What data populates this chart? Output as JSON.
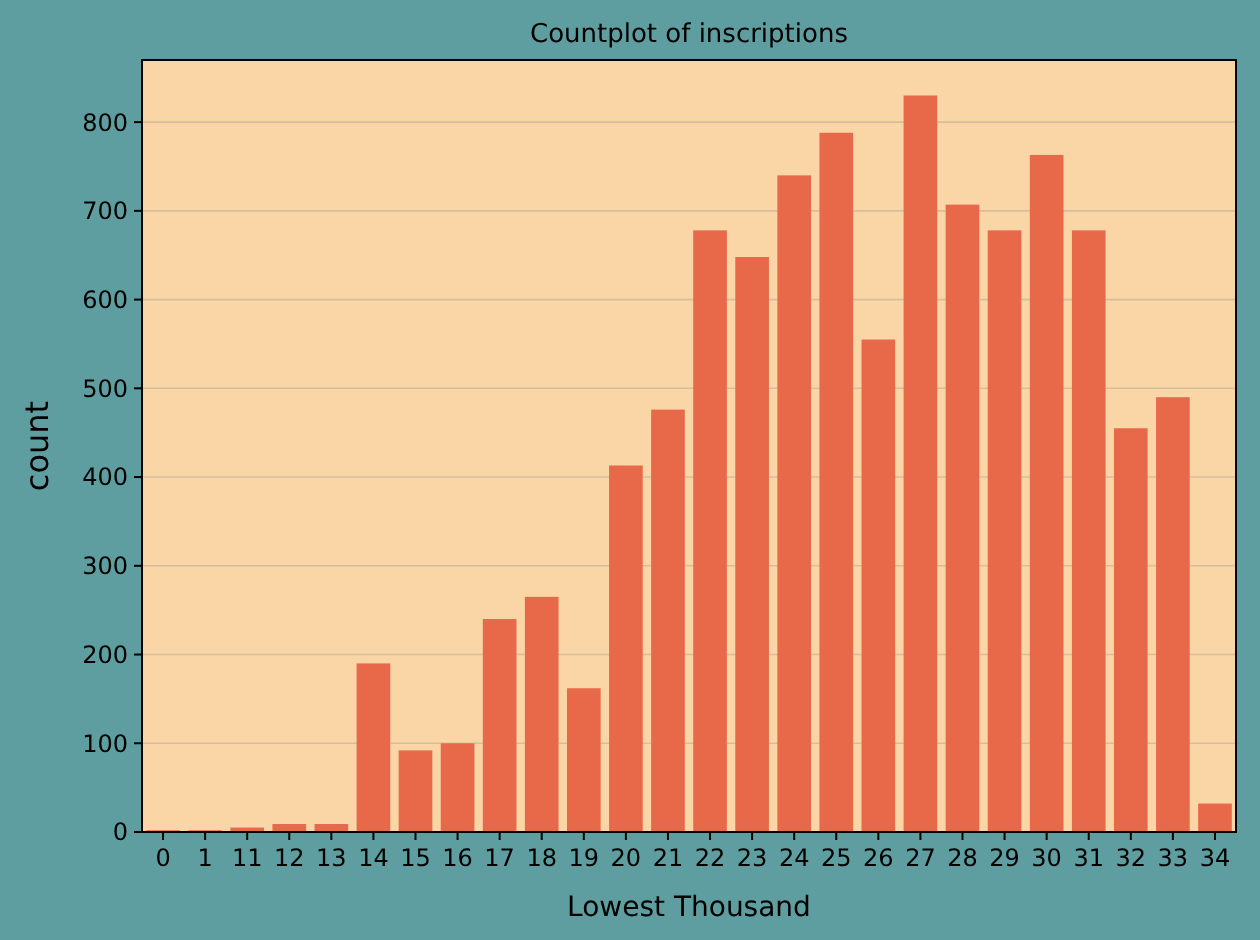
{
  "chart_data": {
    "type": "bar",
    "title": "Countplot of inscriptions",
    "xlabel": "Lowest Thousand",
    "ylabel": "count",
    "categories": [
      "0",
      "1",
      "11",
      "12",
      "13",
      "14",
      "15",
      "16",
      "17",
      "18",
      "19",
      "20",
      "21",
      "22",
      "23",
      "24",
      "25",
      "26",
      "27",
      "28",
      "29",
      "30",
      "31",
      "32",
      "33",
      "34"
    ],
    "values": [
      2,
      2,
      5,
      9,
      9,
      190,
      92,
      100,
      240,
      265,
      162,
      413,
      476,
      678,
      648,
      740,
      788,
      555,
      830,
      707,
      678,
      763,
      678,
      455,
      490,
      32
    ],
    "color": "#e8694a",
    "ylim": [
      0,
      870
    ],
    "yticks": [
      0,
      100,
      200,
      300,
      400,
      500,
      600,
      700,
      800
    ],
    "grid": "y"
  }
}
